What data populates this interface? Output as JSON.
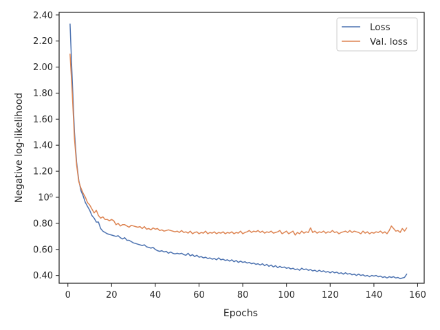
{
  "chart_data": {
    "type": "line",
    "title": "",
    "xlabel": "Epochs",
    "ylabel": "Negative log-likelihood",
    "xlim": [
      -4,
      163
    ],
    "ylim": [
      0.34,
      2.42
    ],
    "x_ticks": [
      0,
      20,
      40,
      60,
      80,
      100,
      120,
      140,
      160
    ],
    "y_ticks": [
      {
        "value": 0.4,
        "label": "0.40"
      },
      {
        "value": 0.6,
        "label": "0.60"
      },
      {
        "value": 0.8,
        "label": "0.80"
      },
      {
        "value": 1.0,
        "label": "10⁰"
      },
      {
        "value": 1.2,
        "label": "1.20"
      },
      {
        "value": 1.4,
        "label": "1.40"
      },
      {
        "value": 1.6,
        "label": "1.60"
      },
      {
        "value": 1.8,
        "label": "1.80"
      },
      {
        "value": 2.0,
        "label": "2.00"
      },
      {
        "value": 2.2,
        "label": "2.20"
      },
      {
        "value": 2.4,
        "label": "2.40"
      }
    ],
    "grid": false,
    "legend_position": "top-right",
    "series": [
      {
        "name": "Loss",
        "color": "#4c72b0",
        "x": [
          1,
          2,
          3,
          4,
          5,
          6,
          7,
          8,
          9,
          10,
          11,
          12,
          13,
          14,
          15,
          16,
          17,
          18,
          19,
          20,
          21,
          22,
          23,
          24,
          25,
          26,
          27,
          28,
          29,
          30,
          31,
          32,
          33,
          34,
          35,
          36,
          37,
          38,
          39,
          40,
          41,
          42,
          43,
          44,
          45,
          46,
          47,
          48,
          49,
          50,
          51,
          52,
          53,
          54,
          55,
          56,
          57,
          58,
          59,
          60,
          61,
          62,
          63,
          64,
          65,
          66,
          67,
          68,
          69,
          70,
          71,
          72,
          73,
          74,
          75,
          76,
          77,
          78,
          79,
          80,
          81,
          82,
          83,
          84,
          85,
          86,
          87,
          88,
          89,
          90,
          91,
          92,
          93,
          94,
          95,
          96,
          97,
          98,
          99,
          100,
          101,
          102,
          103,
          104,
          105,
          106,
          107,
          108,
          109,
          110,
          111,
          112,
          113,
          114,
          115,
          116,
          117,
          118,
          119,
          120,
          121,
          122,
          123,
          124,
          125,
          126,
          127,
          128,
          129,
          130,
          131,
          132,
          133,
          134,
          135,
          136,
          137,
          138,
          139,
          140,
          141,
          142,
          143,
          144,
          145,
          146,
          147,
          148,
          149,
          150,
          151,
          152,
          153,
          154,
          155
        ],
        "y": [
          2.33,
          1.9,
          1.5,
          1.27,
          1.13,
          1.05,
          1.01,
          0.96,
          0.93,
          0.9,
          0.86,
          0.84,
          0.81,
          0.81,
          0.76,
          0.74,
          0.73,
          0.72,
          0.715,
          0.71,
          0.705,
          0.7,
          0.705,
          0.69,
          0.68,
          0.69,
          0.67,
          0.67,
          0.66,
          0.65,
          0.645,
          0.64,
          0.635,
          0.63,
          0.635,
          0.62,
          0.615,
          0.61,
          0.615,
          0.6,
          0.59,
          0.585,
          0.59,
          0.58,
          0.585,
          0.57,
          0.58,
          0.57,
          0.565,
          0.57,
          0.565,
          0.57,
          0.56,
          0.555,
          0.57,
          0.55,
          0.56,
          0.545,
          0.555,
          0.54,
          0.545,
          0.535,
          0.54,
          0.53,
          0.535,
          0.525,
          0.53,
          0.52,
          0.535,
          0.52,
          0.525,
          0.515,
          0.52,
          0.51,
          0.52,
          0.505,
          0.515,
          0.5,
          0.51,
          0.5,
          0.505,
          0.495,
          0.5,
          0.49,
          0.495,
          0.485,
          0.49,
          0.48,
          0.49,
          0.475,
          0.485,
          0.47,
          0.48,
          0.465,
          0.475,
          0.46,
          0.47,
          0.46,
          0.465,
          0.455,
          0.46,
          0.45,
          0.455,
          0.445,
          0.45,
          0.44,
          0.455,
          0.445,
          0.45,
          0.44,
          0.445,
          0.435,
          0.44,
          0.43,
          0.44,
          0.43,
          0.435,
          0.425,
          0.43,
          0.42,
          0.43,
          0.42,
          0.425,
          0.415,
          0.42,
          0.41,
          0.42,
          0.41,
          0.415,
          0.405,
          0.41,
          0.4,
          0.41,
          0.4,
          0.405,
          0.395,
          0.4,
          0.39,
          0.4,
          0.395,
          0.4,
          0.39,
          0.395,
          0.385,
          0.39,
          0.38,
          0.39,
          0.385,
          0.39,
          0.38,
          0.385,
          0.375,
          0.38,
          0.385,
          0.41
        ]
      },
      {
        "name": "Val. loss",
        "color": "#dd8452",
        "x": [
          1,
          2,
          3,
          4,
          5,
          6,
          7,
          8,
          9,
          10,
          11,
          12,
          13,
          14,
          15,
          16,
          17,
          18,
          19,
          20,
          21,
          22,
          23,
          24,
          25,
          26,
          27,
          28,
          29,
          30,
          31,
          32,
          33,
          34,
          35,
          36,
          37,
          38,
          39,
          40,
          41,
          42,
          43,
          44,
          45,
          46,
          47,
          48,
          49,
          50,
          51,
          52,
          53,
          54,
          55,
          56,
          57,
          58,
          59,
          60,
          61,
          62,
          63,
          64,
          65,
          66,
          67,
          68,
          69,
          70,
          71,
          72,
          73,
          74,
          75,
          76,
          77,
          78,
          79,
          80,
          81,
          82,
          83,
          84,
          85,
          86,
          87,
          88,
          89,
          90,
          91,
          92,
          93,
          94,
          95,
          96,
          97,
          98,
          99,
          100,
          101,
          102,
          103,
          104,
          105,
          106,
          107,
          108,
          109,
          110,
          111,
          112,
          113,
          114,
          115,
          116,
          117,
          118,
          119,
          120,
          121,
          122,
          123,
          124,
          125,
          126,
          127,
          128,
          129,
          130,
          131,
          132,
          133,
          134,
          135,
          136,
          137,
          138,
          139,
          140,
          141,
          142,
          143,
          144,
          145,
          146,
          147,
          148,
          149,
          150,
          151,
          152,
          153,
          154,
          155
        ],
        "y": [
          2.1,
          1.8,
          1.45,
          1.25,
          1.12,
          1.07,
          1.03,
          1.0,
          0.96,
          0.94,
          0.91,
          0.88,
          0.9,
          0.86,
          0.84,
          0.85,
          0.83,
          0.83,
          0.82,
          0.83,
          0.82,
          0.79,
          0.8,
          0.78,
          0.79,
          0.79,
          0.78,
          0.77,
          0.785,
          0.78,
          0.775,
          0.77,
          0.775,
          0.76,
          0.775,
          0.755,
          0.76,
          0.75,
          0.765,
          0.755,
          0.76,
          0.745,
          0.75,
          0.74,
          0.745,
          0.75,
          0.745,
          0.74,
          0.735,
          0.74,
          0.73,
          0.745,
          0.73,
          0.735,
          0.725,
          0.74,
          0.72,
          0.73,
          0.735,
          0.72,
          0.73,
          0.725,
          0.74,
          0.72,
          0.73,
          0.725,
          0.735,
          0.72,
          0.73,
          0.725,
          0.735,
          0.72,
          0.73,
          0.725,
          0.735,
          0.72,
          0.73,
          0.725,
          0.74,
          0.72,
          0.73,
          0.735,
          0.745,
          0.73,
          0.74,
          0.735,
          0.745,
          0.73,
          0.74,
          0.725,
          0.735,
          0.73,
          0.74,
          0.725,
          0.73,
          0.735,
          0.745,
          0.72,
          0.73,
          0.74,
          0.72,
          0.73,
          0.74,
          0.71,
          0.73,
          0.72,
          0.74,
          0.725,
          0.735,
          0.73,
          0.765,
          0.73,
          0.74,
          0.725,
          0.735,
          0.73,
          0.74,
          0.725,
          0.735,
          0.73,
          0.745,
          0.73,
          0.735,
          0.72,
          0.73,
          0.735,
          0.74,
          0.73,
          0.745,
          0.73,
          0.74,
          0.735,
          0.73,
          0.72,
          0.74,
          0.725,
          0.735,
          0.72,
          0.73,
          0.725,
          0.735,
          0.73,
          0.74,
          0.725,
          0.735,
          0.72,
          0.745,
          0.78,
          0.76,
          0.74,
          0.745,
          0.73,
          0.76,
          0.74,
          0.765
        ]
      }
    ]
  }
}
